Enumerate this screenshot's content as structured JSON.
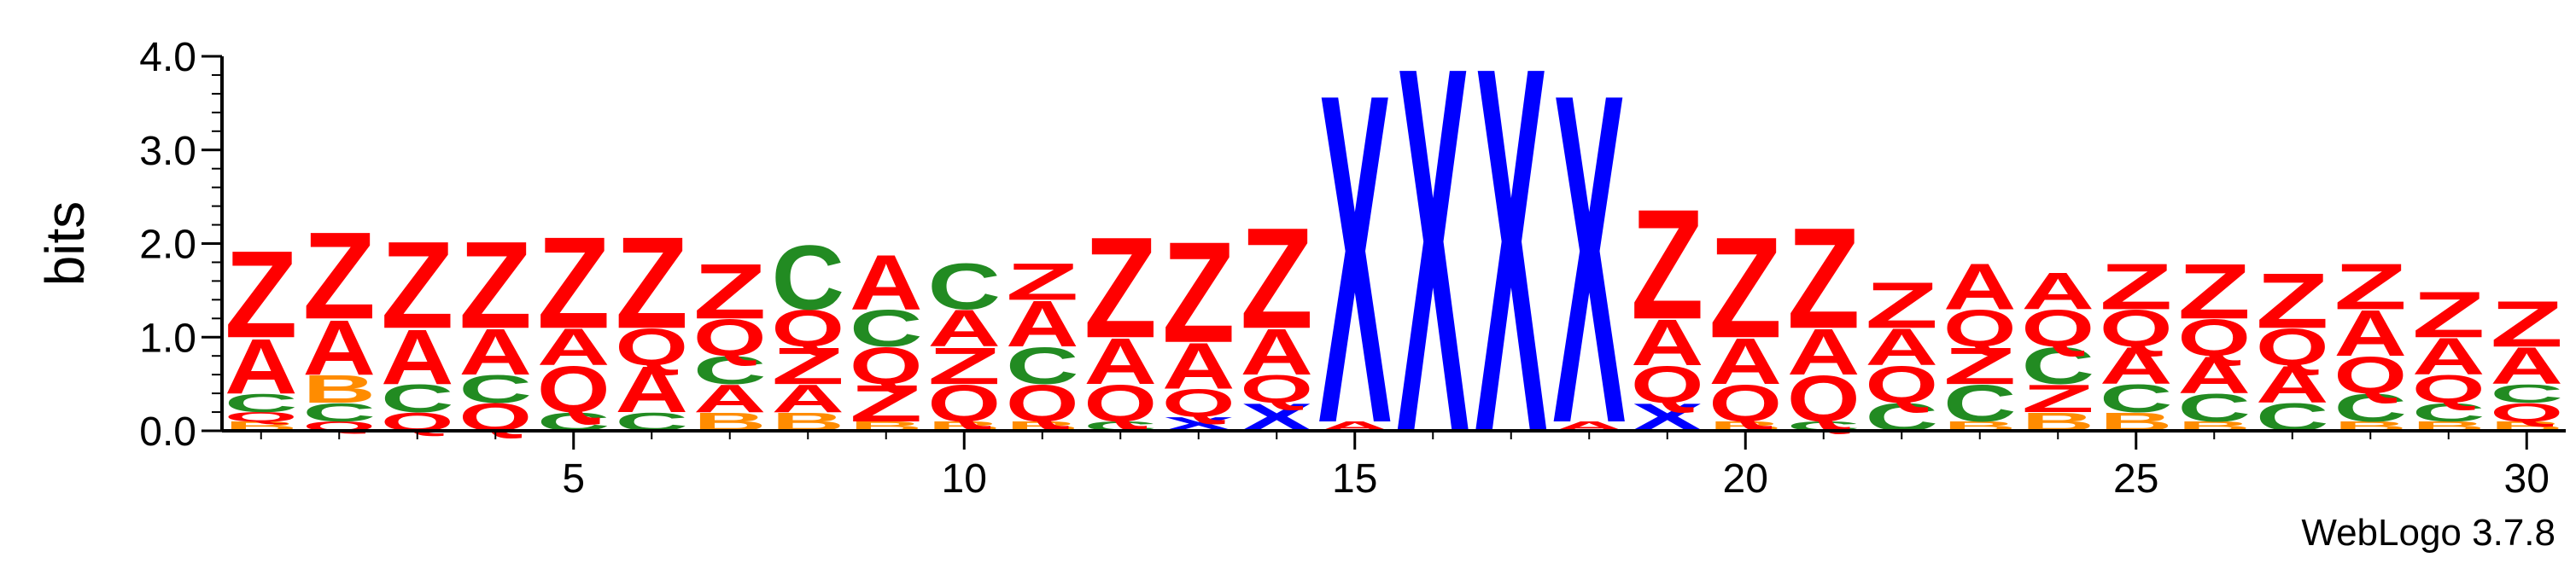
{
  "chart_data": {
    "type": "sequence-logo",
    "ylabel": "bits",
    "ylim": [
      0,
      4.0
    ],
    "yticks": [
      {
        "value": 0.0,
        "label": "0.0"
      },
      {
        "value": 1.0,
        "label": "1.0"
      },
      {
        "value": 2.0,
        "label": "2.0"
      },
      {
        "value": 3.0,
        "label": "3.0"
      },
      {
        "value": 4.0,
        "label": "4.0"
      }
    ],
    "xlim": [
      0.5,
      30.5
    ],
    "xticks": [
      {
        "value": 5,
        "label": "5"
      },
      {
        "value": 10,
        "label": "10"
      },
      {
        "value": 15,
        "label": "15"
      },
      {
        "value": 20,
        "label": "20"
      },
      {
        "value": 25,
        "label": "25"
      },
      {
        "value": 30,
        "label": "30"
      }
    ],
    "colors": {
      "Z": "#ff0000",
      "A": "#ff0000",
      "Q": "#ff0000",
      "C": "#228b22",
      "B": "#ff8c00",
      "X": "#0000ff"
    },
    "positions": [
      {
        "pos": 1,
        "letters": [
          [
            "B",
            0.1
          ],
          [
            "Q",
            0.1
          ],
          [
            "C",
            0.2
          ],
          [
            "A",
            0.6
          ],
          [
            "Z",
            0.95
          ]
        ]
      },
      {
        "pos": 2,
        "letters": [
          [
            "Q",
            0.1
          ],
          [
            "C",
            0.2
          ],
          [
            "B",
            0.3
          ],
          [
            "A",
            0.6
          ],
          [
            "Z",
            0.95
          ]
        ]
      },
      {
        "pos": 3,
        "letters": [
          [
            "Q",
            0.2
          ],
          [
            "C",
            0.3
          ],
          [
            "A",
            0.6
          ],
          [
            "Z",
            0.95
          ]
        ]
      },
      {
        "pos": 4,
        "letters": [
          [
            "Q",
            0.3
          ],
          [
            "C",
            0.3
          ],
          [
            "A",
            0.5
          ],
          [
            "Z",
            0.95
          ]
        ]
      },
      {
        "pos": 5,
        "letters": [
          [
            "C",
            0.2
          ],
          [
            "Q",
            0.5
          ],
          [
            "A",
            0.4
          ],
          [
            "Z",
            1.0
          ]
        ]
      },
      {
        "pos": 6,
        "letters": [
          [
            "C",
            0.2
          ],
          [
            "A",
            0.5
          ],
          [
            "Q",
            0.4
          ],
          [
            "Z",
            1.0
          ]
        ]
      },
      {
        "pos": 7,
        "letters": [
          [
            "B",
            0.2
          ],
          [
            "A",
            0.3
          ],
          [
            "C",
            0.3
          ],
          [
            "Q",
            0.4
          ],
          [
            "Z",
            0.6
          ]
        ]
      },
      {
        "pos": 8,
        "letters": [
          [
            "B",
            0.2
          ],
          [
            "A",
            0.3
          ],
          [
            "Z",
            0.4
          ],
          [
            "Q",
            0.4
          ],
          [
            "C",
            0.7
          ]
        ]
      },
      {
        "pos": 9,
        "letters": [
          [
            "B",
            0.1
          ],
          [
            "Z",
            0.4
          ],
          [
            "Q",
            0.4
          ],
          [
            "C",
            0.4
          ],
          [
            "A",
            0.6
          ]
        ]
      },
      {
        "pos": 10,
        "letters": [
          [
            "B",
            0.1
          ],
          [
            "Q",
            0.4
          ],
          [
            "Z",
            0.4
          ],
          [
            "A",
            0.4
          ],
          [
            "C",
            0.5
          ]
        ]
      },
      {
        "pos": 11,
        "letters": [
          [
            "B",
            0.1
          ],
          [
            "Q",
            0.4
          ],
          [
            "C",
            0.4
          ],
          [
            "A",
            0.5
          ],
          [
            "Z",
            0.4
          ]
        ]
      },
      {
        "pos": 12,
        "letters": [
          [
            "C",
            0.1
          ],
          [
            "Q",
            0.4
          ],
          [
            "A",
            0.5
          ],
          [
            "Z",
            1.1
          ]
        ]
      },
      {
        "pos": 13,
        "letters": [
          [
            "X",
            0.15
          ],
          [
            "Q",
            0.3
          ],
          [
            "A",
            0.5
          ],
          [
            "Z",
            1.1
          ]
        ]
      },
      {
        "pos": 14,
        "letters": [
          [
            "X",
            0.3
          ],
          [
            "Q",
            0.3
          ],
          [
            "A",
            0.5
          ],
          [
            "Z",
            1.1
          ]
        ]
      },
      {
        "pos": 15,
        "letters": [
          [
            "A",
            0.1
          ],
          [
            "X",
            3.6
          ]
        ]
      },
      {
        "pos": 16,
        "letters": [
          [
            "X",
            4.0
          ]
        ]
      },
      {
        "pos": 17,
        "letters": [
          [
            "X",
            4.0
          ]
        ]
      },
      {
        "pos": 18,
        "letters": [
          [
            "A",
            0.1
          ],
          [
            "X",
            3.6
          ]
        ]
      },
      {
        "pos": 19,
        "letters": [
          [
            "X",
            0.3
          ],
          [
            "Q",
            0.4
          ],
          [
            "A",
            0.5
          ],
          [
            "Z",
            1.2
          ]
        ]
      },
      {
        "pos": 20,
        "letters": [
          [
            "B",
            0.1
          ],
          [
            "Q",
            0.4
          ],
          [
            "A",
            0.5
          ],
          [
            "Z",
            1.1
          ]
        ]
      },
      {
        "pos": 21,
        "letters": [
          [
            "C",
            0.1
          ],
          [
            "Q",
            0.5
          ],
          [
            "A",
            0.5
          ],
          [
            "Z",
            1.1
          ]
        ]
      },
      {
        "pos": 22,
        "letters": [
          [
            "C",
            0.3
          ],
          [
            "Q",
            0.4
          ],
          [
            "A",
            0.4
          ],
          [
            "Z",
            0.5
          ]
        ]
      },
      {
        "pos": 23,
        "letters": [
          [
            "B",
            0.1
          ],
          [
            "C",
            0.4
          ],
          [
            "Z",
            0.4
          ],
          [
            "Q",
            0.4
          ],
          [
            "A",
            0.5
          ]
        ]
      },
      {
        "pos": 24,
        "letters": [
          [
            "B",
            0.2
          ],
          [
            "Z",
            0.3
          ],
          [
            "C",
            0.4
          ],
          [
            "Q",
            0.4
          ],
          [
            "A",
            0.4
          ]
        ]
      },
      {
        "pos": 25,
        "letters": [
          [
            "B",
            0.2
          ],
          [
            "C",
            0.3
          ],
          [
            "A",
            0.4
          ],
          [
            "Q",
            0.4
          ],
          [
            "Z",
            0.5
          ]
        ]
      },
      {
        "pos": 26,
        "letters": [
          [
            "B",
            0.1
          ],
          [
            "C",
            0.3
          ],
          [
            "A",
            0.4
          ],
          [
            "Q",
            0.4
          ],
          [
            "Z",
            0.6
          ]
        ]
      },
      {
        "pos": 27,
        "letters": [
          [
            "C",
            0.3
          ],
          [
            "A",
            0.4
          ],
          [
            "Q",
            0.4
          ],
          [
            "Z",
            0.6
          ]
        ]
      },
      {
        "pos": 28,
        "letters": [
          [
            "B",
            0.1
          ],
          [
            "C",
            0.3
          ],
          [
            "Q",
            0.4
          ],
          [
            "A",
            0.5
          ],
          [
            "Z",
            0.5
          ]
        ]
      },
      {
        "pos": 29,
        "letters": [
          [
            "B",
            0.1
          ],
          [
            "C",
            0.2
          ],
          [
            "Q",
            0.3
          ],
          [
            "A",
            0.4
          ],
          [
            "Z",
            0.5
          ]
        ]
      },
      {
        "pos": 30,
        "letters": [
          [
            "B",
            0.1
          ],
          [
            "Q",
            0.2
          ],
          [
            "C",
            0.2
          ],
          [
            "A",
            0.4
          ],
          [
            "Z",
            0.5
          ]
        ]
      }
    ]
  },
  "footer": "WebLogo 3.7.8"
}
